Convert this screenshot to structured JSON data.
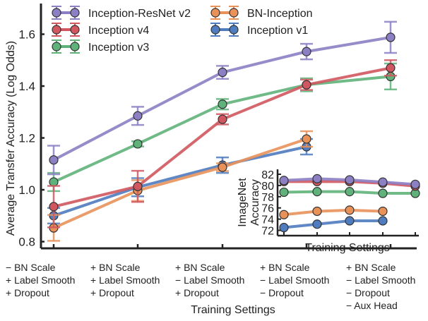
{
  "chart_data": {
    "type": "line",
    "title": "",
    "xlabel": "Training Settings",
    "ylabel": "Average Transfer Accuracy (Log Odds)",
    "ylim": [
      0.77,
      1.72
    ],
    "yticks": [
      "0.8",
      "1.0",
      "1.2",
      "1.4",
      "1.6"
    ],
    "ytick_values": [
      0.8,
      1.0,
      1.2,
      1.4,
      1.6
    ],
    "grid": false,
    "legend": "top-left, two columns",
    "categories": [
      [
        "− BN Scale",
        "+ Label Smooth",
        "+ Dropout"
      ],
      [
        "+ BN Scale",
        "+ Label Smooth",
        "+ Dropout"
      ],
      [
        "+ BN Scale",
        "− Label Smooth",
        "+ Dropout"
      ],
      [
        "+ BN Scale",
        "− Label Smooth",
        "− Dropout"
      ],
      [
        "+ BN Scale",
        "− Label Smooth",
        "− Dropout",
        "− Aux Head"
      ]
    ],
    "series": [
      {
        "name": "Inception-ResNet v2",
        "color": "#8c7fc4",
        "values": [
          1.115,
          1.285,
          1.453,
          1.533,
          1.588
        ],
        "err": [
          0.055,
          0.035,
          0.025,
          0.03,
          0.06
        ]
      },
      {
        "name": "Inception v4",
        "color": "#d0575f",
        "values": [
          0.935,
          1.013,
          1.272,
          1.405,
          1.47
        ],
        "err": [
          0.08,
          0.06,
          0.02,
          0.02,
          0.03
        ]
      },
      {
        "name": "Inception v3",
        "color": "#5fb37a",
        "values": [
          1.03,
          1.177,
          1.33,
          1.405,
          1.437
        ],
        "err": [
          0.035,
          0.01,
          0.02,
          0.025,
          0.05
        ]
      },
      {
        "name": "BN-Inception",
        "color": "#e8925a",
        "values": [
          0.853,
          0.997,
          1.087,
          1.196,
          null
        ],
        "err": [
          0.05,
          0.04,
          0.015,
          0.03,
          null
        ]
      },
      {
        "name": "Inception v1",
        "color": "#4f7bbf",
        "values": [
          0.9,
          1.01,
          1.095,
          1.166,
          null
        ],
        "err": [
          0.03,
          0.035,
          0.03,
          0.03,
          null
        ]
      }
    ],
    "inset": {
      "xlabel": "Training Settings",
      "ylabel": [
        "ImageNet",
        "Accuracy"
      ],
      "ylim": [
        71.5,
        82.3
      ],
      "yticks": [
        "72",
        "74",
        "76",
        "78",
        "80",
        "82"
      ],
      "ytick_values": [
        72,
        74,
        76,
        78,
        80,
        82
      ],
      "series": [
        {
          "name": "Inception-ResNet v2",
          "color": "#8c7fc4",
          "values": [
            80.9,
            81.2,
            81.0,
            80.6,
            80.2
          ]
        },
        {
          "name": "Inception v4",
          "color": "#d0575f",
          "values": [
            80.7,
            80.7,
            80.7,
            80.4,
            79.9
          ]
        },
        {
          "name": "Inception v3",
          "color": "#5fb37a",
          "values": [
            78.8,
            78.9,
            78.9,
            78.6,
            78.6
          ]
        },
        {
          "name": "BN-Inception",
          "color": "#e8925a",
          "values": [
            74.8,
            75.4,
            75.6,
            75.4,
            null
          ]
        },
        {
          "name": "Inception v1",
          "color": "#4f7bbf",
          "values": [
            72.5,
            73.1,
            73.7,
            73.7,
            null
          ]
        }
      ]
    }
  }
}
